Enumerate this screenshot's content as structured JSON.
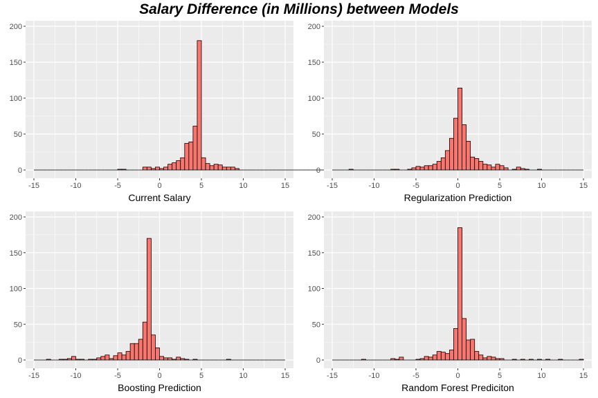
{
  "page_title": "Salary Difference (in Millions) between Models",
  "colors": {
    "panel_bg": "#ebebeb",
    "grid": "#ffffff",
    "bar_fill": "#f8766d",
    "bar_stroke": "#000000",
    "tick_text": "#4d4d4d"
  },
  "chart_data": [
    {
      "type": "histogram",
      "xlabel": "Current Salary",
      "xlim": [
        -15,
        15
      ],
      "ylim": [
        0,
        200
      ],
      "x_ticks": [
        -15,
        -10,
        -5,
        0,
        5,
        10,
        15
      ],
      "y_ticks": [
        0,
        50,
        100,
        150,
        200
      ],
      "bin_width": 0.5,
      "first_bin_start": -15,
      "counts": [
        0,
        0,
        0,
        0,
        0,
        0,
        0,
        0,
        0,
        0,
        0,
        0,
        0,
        0,
        0,
        0,
        0,
        0,
        0,
        0,
        1,
        1,
        0,
        0,
        0,
        0,
        4,
        4,
        2,
        4,
        2,
        4,
        8,
        10,
        13,
        17,
        37,
        39,
        61,
        180,
        17,
        9,
        6,
        8,
        7,
        4,
        4,
        4,
        2,
        0,
        0,
        0,
        0,
        0,
        0,
        0,
        0,
        0,
        0,
        0,
        0,
        0,
        0,
        0,
        0,
        0,
        0,
        0,
        0,
        0,
        0,
        0,
        0,
        0,
        1,
        0,
        0,
        0,
        0,
        0,
        0,
        0,
        0,
        0,
        0,
        0,
        0,
        0,
        0,
        0
      ]
    },
    {
      "type": "histogram",
      "xlabel": "Regularization Prediction",
      "xlim": [
        -15,
        15
      ],
      "ylim": [
        0,
        200
      ],
      "x_ticks": [
        -15,
        -10,
        -5,
        0,
        5,
        10,
        15
      ],
      "y_ticks": [
        0,
        50,
        100,
        150,
        200
      ],
      "bin_width": 0.5,
      "first_bin_start": -15,
      "counts": [
        0,
        0,
        0,
        0,
        1,
        0,
        0,
        0,
        0,
        0,
        0,
        0,
        0,
        0,
        1,
        1,
        0,
        0,
        1,
        3,
        5,
        4,
        6,
        6,
        8,
        12,
        17,
        27,
        44,
        72,
        114,
        63,
        40,
        18,
        16,
        12,
        8,
        7,
        4,
        8,
        6,
        3,
        0,
        1,
        4,
        2,
        1,
        0,
        0,
        1,
        0,
        0,
        0,
        0,
        0,
        0,
        0,
        0,
        0,
        0
      ]
    },
    {
      "type": "histogram",
      "xlabel": "Boosting Prediction",
      "xlim": [
        -15,
        15
      ],
      "ylim": [
        0,
        200
      ],
      "x_ticks": [
        -15,
        -10,
        -5,
        0,
        5,
        10,
        15
      ],
      "y_ticks": [
        0,
        50,
        100,
        150,
        200
      ],
      "bin_width": 0.5,
      "first_bin_start": -15,
      "counts": [
        0,
        0,
        0,
        1,
        0,
        0,
        1,
        1,
        2,
        5,
        1,
        1,
        0,
        1,
        1,
        3,
        5,
        7,
        2,
        6,
        10,
        7,
        12,
        23,
        23,
        29,
        53,
        170,
        35,
        17,
        5,
        3,
        3,
        1,
        4,
        2,
        1,
        0,
        1,
        0,
        0,
        0,
        0,
        0,
        0,
        0,
        1,
        0,
        0,
        0,
        0,
        0,
        0,
        0,
        0,
        0,
        0,
        0,
        0,
        0
      ]
    },
    {
      "type": "histogram",
      "xlabel": "Random Forest Prediciton",
      "xlim": [
        -15,
        15
      ],
      "ylim": [
        0,
        200
      ],
      "x_ticks": [
        -15,
        -10,
        -5,
        0,
        5,
        10,
        15
      ],
      "y_ticks": [
        0,
        50,
        100,
        150,
        200
      ],
      "bin_width": 0.5,
      "first_bin_start": -15,
      "counts": [
        0,
        0,
        0,
        0,
        0,
        0,
        0,
        1,
        0,
        0,
        0,
        0,
        0,
        0,
        2,
        1,
        4,
        0,
        0,
        0,
        1,
        2,
        5,
        4,
        7,
        12,
        11,
        9,
        14,
        44,
        185,
        58,
        28,
        29,
        12,
        7,
        3,
        5,
        4,
        2,
        2,
        0,
        0,
        1,
        0,
        1,
        0,
        1,
        0,
        1,
        0,
        1,
        0,
        0,
        1,
        0,
        0,
        0,
        0,
        1
      ]
    }
  ]
}
